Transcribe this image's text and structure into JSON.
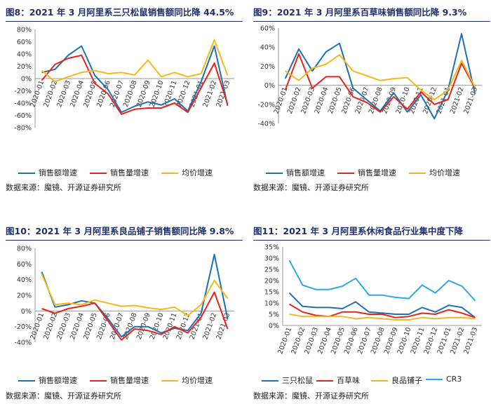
{
  "colors": {
    "blue": "#1f6fb4",
    "red": "#e8231a",
    "yellow": "#f5b81c",
    "cyan": "#2aa9e0",
    "title": "#1f2f6b",
    "axis": "#999999"
  },
  "panels": [
    {
      "title": "图8：2021 年 3 月阿里系三只松鼠销售额同比降 44.5%",
      "source": "数据来源：魔镜、开源证券研究所",
      "legend": [
        "销售额增速",
        "销售量增速",
        "均价增速"
      ]
    },
    {
      "title": "图9：2021 年 3 月阿里系百草味销售额同比降 9.3%",
      "source": "数据来源：魔镜、开源证券研究所",
      "legend": [
        "销售额增速",
        "销售量增速",
        "均价增速"
      ]
    },
    {
      "title": "图10：2021 年 3 月阿里系良品铺子销售额同比降 9.8%",
      "source": "数据来源：魔镜、开源证券研究所",
      "legend": [
        "销售额增速",
        "销售量增速",
        "均价增速"
      ]
    },
    {
      "title": "图11：2021 年 3 月阿里系休闲食品行业集中度下降",
      "source": "数据来源：魔镜、开源证券研究所",
      "legend": [
        "三只松鼠",
        "百草味",
        "良品铺子",
        "CR3"
      ]
    }
  ],
  "chart_data": [
    {
      "type": "line",
      "title": "图8：2021 年 3 月阿里系三只松鼠销售额同比降 44.5%",
      "categories": [
        "2020-01",
        "2020-02",
        "2020-03",
        "2020-04",
        "2020-05",
        "2020-06",
        "2020-07",
        "2020-08",
        "2020-09",
        "2020-10",
        "2020-11",
        "2020-12",
        "2021-01",
        "2021-02",
        "2021-03"
      ],
      "ylim": [
        -80,
        80
      ],
      "yticks": [
        -80,
        -60,
        -40,
        -20,
        0,
        20,
        40,
        60,
        80
      ],
      "ytick_labels": [
        "-80%",
        "-60%",
        "-40%",
        "-20%",
        "0%",
        "20%",
        "40%",
        "60%",
        "80%"
      ],
      "series": [
        {
          "name": "销售额增速",
          "color": "#1f6fb4",
          "values": [
            10,
            15,
            38,
            53,
            5,
            -18,
            -55,
            -45,
            -38,
            -43,
            -33,
            -53,
            -5,
            53,
            -44.5
          ]
        },
        {
          "name": "销售量增速",
          "color": "#e8231a",
          "values": [
            -3,
            23,
            33,
            38,
            -8,
            -25,
            -58,
            -50,
            -48,
            -48,
            -40,
            -55,
            -15,
            25,
            -42
          ]
        },
        {
          "name": "均价增速",
          "color": "#f5b81c",
          "values": [
            13,
            -5,
            3,
            10,
            13,
            8,
            10,
            6,
            30,
            3,
            10,
            3,
            8,
            63,
            5
          ]
        }
      ]
    },
    {
      "type": "line",
      "title": "图9：2021 年 3 月阿里系百草味销售额同比降 9.3%",
      "categories": [
        "2020-01",
        "2020-02",
        "2020-03",
        "2020-04",
        "2020-05",
        "2020-06",
        "2020-07",
        "2020-08",
        "2020-09",
        "2020-10",
        "2020-11",
        "2020-12",
        "2021-01",
        "2021-02",
        "2021-03"
      ],
      "ylim": [
        -40,
        60
      ],
      "yticks": [
        -40,
        -20,
        0,
        20,
        40,
        60
      ],
      "ytick_labels": [
        "-40%",
        "-20%",
        "0%",
        "20%",
        "40%",
        "60%"
      ],
      "series": [
        {
          "name": "销售额增速",
          "color": "#1f6fb4",
          "values": [
            7,
            38,
            15,
            35,
            44,
            -3,
            -15,
            -27,
            -8,
            -28,
            -10,
            -35,
            -5,
            54,
            -9.3
          ]
        },
        {
          "name": "销售量增速",
          "color": "#e8231a",
          "values": [
            -5,
            33,
            -3,
            9,
            9,
            -12,
            -18,
            -28,
            -12,
            -25,
            -7,
            -20,
            -15,
            23,
            -3
          ]
        },
        {
          "name": "均价增速",
          "color": "#f5b81c",
          "values": [
            15,
            5,
            18,
            22,
            32,
            15,
            10,
            5,
            7,
            8,
            -5,
            -15,
            -5,
            26,
            -2
          ]
        }
      ]
    },
    {
      "type": "line",
      "title": "图10：2021 年 3 月阿里系良品铺子销售额同比降 9.8%",
      "categories": [
        "2020-01",
        "2020-02",
        "2020-03",
        "2020-04",
        "2020-05",
        "2020-06",
        "2020-07",
        "2020-08",
        "2020-09",
        "2020-10",
        "2020-11",
        "2020-12",
        "2021-01",
        "2021-02",
        "2021-03"
      ],
      "ylim": [
        -40,
        80
      ],
      "yticks": [
        -40,
        -20,
        0,
        20,
        40,
        60,
        80
      ],
      "ytick_labels": [
        "-40%",
        "-20%",
        "0%",
        "20%",
        "40%",
        "60%",
        "80%"
      ],
      "series": [
        {
          "name": "销售额增速",
          "color": "#1f6fb4",
          "values": [
            50,
            5,
            8,
            13,
            10,
            -10,
            -33,
            -20,
            -20,
            -28,
            -22,
            -25,
            -3,
            72,
            -10
          ]
        },
        {
          "name": "销售量增速",
          "color": "#e8231a",
          "values": [
            3,
            -3,
            3,
            6,
            10,
            -13,
            -37,
            -23,
            -25,
            -30,
            -20,
            -28,
            -8,
            24,
            -23
          ]
        },
        {
          "name": "均价增速",
          "color": "#f5b81c",
          "values": [
            47,
            8,
            10,
            8,
            14,
            10,
            6,
            7,
            4,
            2,
            5,
            -6,
            8,
            39,
            16
          ]
        }
      ]
    },
    {
      "type": "line",
      "title": "图11：2021 年 3 月阿里系休闲食品行业集中度下降",
      "categories": [
        "2020-01",
        "2020-02",
        "2020-03",
        "2020-04",
        "2020-05",
        "2020-06",
        "2020-07",
        "2020-08",
        "2020-09",
        "2020-10",
        "2020-11",
        "2020-12",
        "2021-01",
        "2021-02",
        "2021-03"
      ],
      "ylim": [
        0,
        35
      ],
      "yticks": [
        0,
        5,
        10,
        15,
        20,
        25,
        30,
        35
      ],
      "ytick_labels": [
        "0%",
        "5%",
        "10%",
        "15%",
        "20%",
        "25%",
        "30%",
        "35%"
      ],
      "series": [
        {
          "name": "三只松鼠",
          "color": "#1f6fb4",
          "values": [
            14.5,
            8.5,
            8,
            8,
            7.5,
            10.5,
            6,
            5.5,
            5,
            5,
            8,
            6,
            9,
            8,
            3.5
          ]
        },
        {
          "name": "百草味",
          "color": "#e8231a",
          "values": [
            9.5,
            6,
            4.5,
            4,
            6,
            6,
            5,
            5,
            3.5,
            4,
            5.5,
            5,
            7,
            5.5,
            3.5
          ]
        },
        {
          "name": "良品铺子",
          "color": "#f5b81c",
          "values": [
            5,
            4,
            4,
            4,
            4,
            3,
            3.5,
            3,
            2.5,
            2.5,
            3.5,
            3,
            3.5,
            3.5,
            3
          ]
        },
        {
          "name": "CR3",
          "color": "#2aa9e0",
          "values": [
            29,
            18,
            16,
            16,
            17.5,
            21,
            13.5,
            13.5,
            12.5,
            12,
            18,
            14.5,
            20,
            17.5,
            11
          ]
        }
      ]
    }
  ]
}
